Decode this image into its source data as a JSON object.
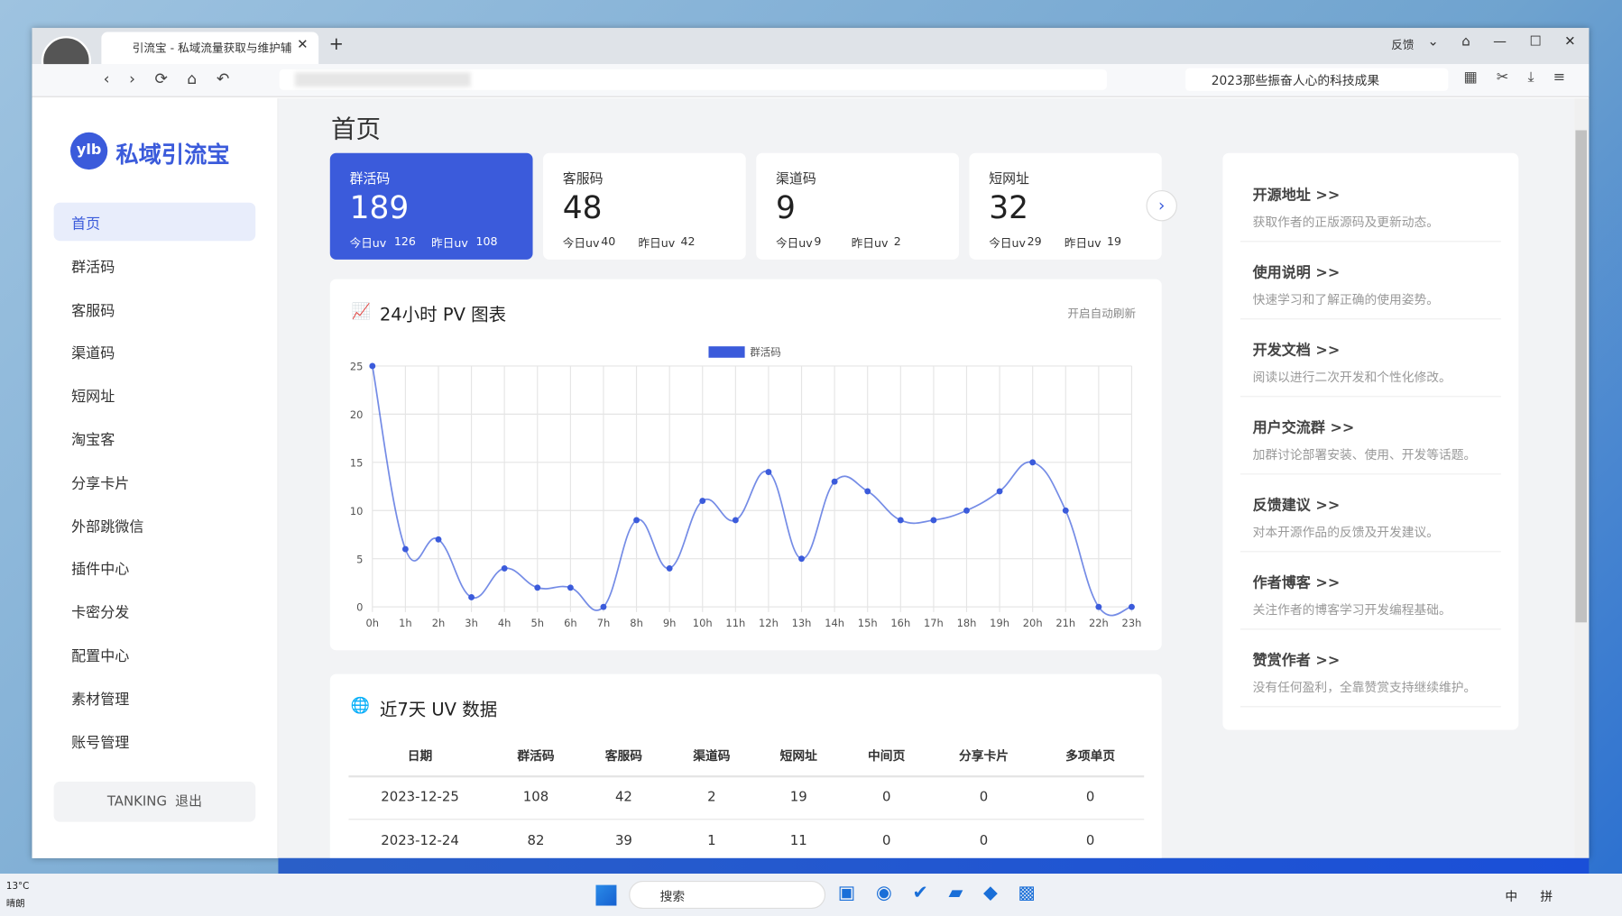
{
  "browser": {
    "tab_title": "引流宝 - 私域流量获取与维护辅",
    "feedback": "反馈",
    "search": "2023那些振奋人心的科技成果"
  },
  "sidebar": {
    "logo_badge": "ylb",
    "logo_text": "私域引流宝",
    "menu": [
      "首页",
      "群活码",
      "客服码",
      "渠道码",
      "短网址",
      "淘宝客",
      "分享卡片",
      "外部跳微信",
      "插件中心",
      "卡密分发",
      "配置中心",
      "素材管理",
      "账号管理"
    ],
    "user": "TANKING",
    "logout": "退出"
  },
  "page_title": "首页",
  "stats": [
    {
      "name": "群活码",
      "total": 189,
      "today_label": "今日uv",
      "today": 126,
      "yesterday_label": "昨日uv",
      "yesterday": 108
    },
    {
      "name": "客服码",
      "total": 48,
      "today_label": "今日uv",
      "today": 40,
      "yesterday_label": "昨日uv",
      "yesterday": 42
    },
    {
      "name": "渠道码",
      "total": 9,
      "today_label": "今日uv",
      "today": 9,
      "yesterday_label": "昨日uv",
      "yesterday": 2
    },
    {
      "name": "短网址",
      "total": 32,
      "today_label": "今日uv",
      "today": 29,
      "yesterday_label": "昨日uv",
      "yesterday": 19
    }
  ],
  "chart_data": {
    "type": "line",
    "title": "24小时 PV 图表",
    "action": "开启自动刷新",
    "categories": [
      "0h",
      "1h",
      "2h",
      "3h",
      "4h",
      "5h",
      "6h",
      "7h",
      "8h",
      "9h",
      "10h",
      "11h",
      "12h",
      "13h",
      "14h",
      "15h",
      "16h",
      "17h",
      "18h",
      "19h",
      "20h",
      "21h",
      "22h",
      "23h"
    ],
    "series": [
      {
        "name": "群活码",
        "color": "#3b5bdb",
        "values": [
          25,
          6,
          7,
          1,
          4,
          2,
          2,
          0,
          9,
          4,
          11,
          9,
          14,
          5,
          13,
          12,
          9,
          9,
          10,
          12,
          15,
          10,
          0,
          0
        ]
      }
    ],
    "ylim": [
      0,
      25
    ],
    "yticks": [
      0,
      5,
      10,
      15,
      20,
      25
    ],
    "grid": true
  },
  "table": {
    "title": "近7天 UV 数据",
    "columns": [
      "日期",
      "群活码",
      "客服码",
      "渠道码",
      "短网址",
      "中间页",
      "分享卡片",
      "多项单页"
    ],
    "rows": [
      [
        "2023-12-25",
        108,
        42,
        2,
        19,
        0,
        0,
        0
      ],
      [
        "2023-12-24",
        82,
        39,
        1,
        11,
        0,
        0,
        0
      ]
    ]
  },
  "links": [
    {
      "title": "开源地址 >>",
      "desc": "获取作者的正版源码及更新动态。"
    },
    {
      "title": "使用说明 >>",
      "desc": "快速学习和了解正确的使用姿势。"
    },
    {
      "title": "开发文档 >>",
      "desc": "阅读以进行二次开发和个性化修改。"
    },
    {
      "title": "用户交流群 >>",
      "desc": "加群讨论部署安装、使用、开发等话题。"
    },
    {
      "title": "反馈建议 >>",
      "desc": "对本开源作品的反馈及开发建议。"
    },
    {
      "title": "作者博客 >>",
      "desc": "关注作者的博客学习开发编程基础。"
    },
    {
      "title": "赞赏作者 >>",
      "desc": "没有任何盈利，全靠赞赏支持继续维护。"
    }
  ],
  "taskbar": {
    "weather_temp": "13°C",
    "weather_desc": "晴朗",
    "search": "搜索",
    "ime": "中",
    "ime2": "拼"
  }
}
